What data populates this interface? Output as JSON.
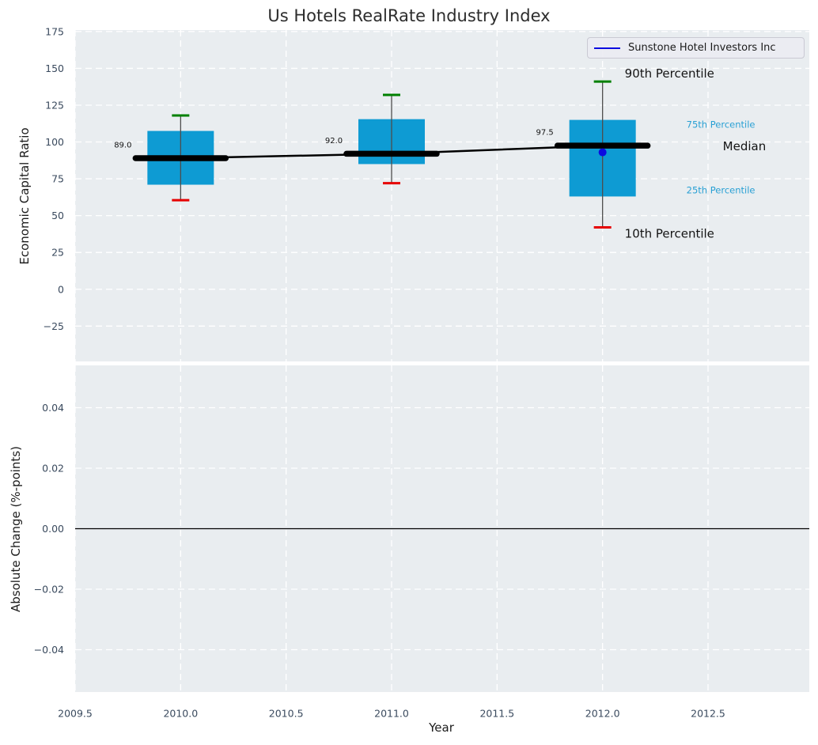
{
  "figure": {
    "title": "Us Hotels RealRate Industry Index"
  },
  "legend": {
    "label": "Sunstone Hotel Investors Inc"
  },
  "colors": {
    "figure_bg": "#ffffff",
    "plot_bg": "#e9edf0",
    "grid": "#ffffff",
    "box_fill": "#0e9bd3",
    "median_line": "#000000",
    "whisker": "#4d4d4d",
    "cap_top": "#008000",
    "cap_bottom": "#e60000",
    "company_blue": "#0b0be0",
    "tick_label": "#3a4a5e",
    "label_dark": "#141414",
    "percentile_blue": "#29a0d4",
    "zero_line": "#000000"
  },
  "chart_data": [
    {
      "type": "boxplot",
      "title": "Us Hotels RealRate Industry Index",
      "ylabel": "Economic Capital Ratio",
      "xlabel": "",
      "xlim": [
        2009.5,
        2012.98
      ],
      "ylim": [
        -49,
        176
      ],
      "grid": true,
      "legend_position": "upper right",
      "yticks": [
        175,
        150,
        125,
        100,
        75,
        50,
        25,
        0,
        -25
      ],
      "ytick_labels": [
        "175",
        "150",
        "125",
        "100",
        "75",
        "50",
        "25",
        "0",
        "−25"
      ],
      "boxes": [
        {
          "year": 2010,
          "p10": 60.5,
          "p25": 71,
          "median": 89,
          "p75": 107.5,
          "p90": 118,
          "median_label": "89.0"
        },
        {
          "year": 2011,
          "p10": 72,
          "p25": 85,
          "median": 92,
          "p75": 115.5,
          "p90": 132,
          "median_label": "92.0"
        },
        {
          "year": 2012,
          "p10": 42,
          "p25": 63,
          "median": 97.5,
          "p75": 115,
          "p90": 141,
          "median_label": "97.5"
        }
      ],
      "median_series": {
        "x": [
          2010,
          2011,
          2012
        ],
        "y": [
          89,
          92,
          97.5
        ]
      },
      "company_series": {
        "name": "Sunstone Hotel Investors Inc",
        "points": [
          {
            "x": 2012,
            "y": 93
          }
        ]
      },
      "percentile_annotations": [
        {
          "label": "90th Percentile",
          "ref": "p90",
          "style": "dark-large"
        },
        {
          "label": "75th Percentile",
          "ref": "p75",
          "style": "blue-small"
        },
        {
          "label": "Median",
          "ref": "median",
          "style": "dark-large"
        },
        {
          "label": "25th Percentile",
          "ref": "p25",
          "style": "blue-small"
        },
        {
          "label": "10th Percentile",
          "ref": "p10",
          "style": "dark-large"
        }
      ]
    },
    {
      "type": "line",
      "ylabel": "Absolute Change (%-points)",
      "xlabel": "Year",
      "xlim": [
        2009.5,
        2012.98
      ],
      "ylim": [
        -0.054,
        0.054
      ],
      "grid": true,
      "zero_line": 0,
      "yticks": [
        0.04,
        0.02,
        0,
        -0.02,
        -0.04
      ],
      "ytick_labels": [
        "0.04",
        "0.02",
        "0.00",
        "−0.02",
        "−0.04"
      ],
      "xticks": [
        2009.5,
        2010,
        2010.5,
        2011,
        2011.5,
        2012,
        2012.5
      ],
      "xtick_labels": [
        "2009.5",
        "2010.0",
        "2010.5",
        "2011.0",
        "2011.5",
        "2012.0",
        "2012.5"
      ]
    }
  ]
}
